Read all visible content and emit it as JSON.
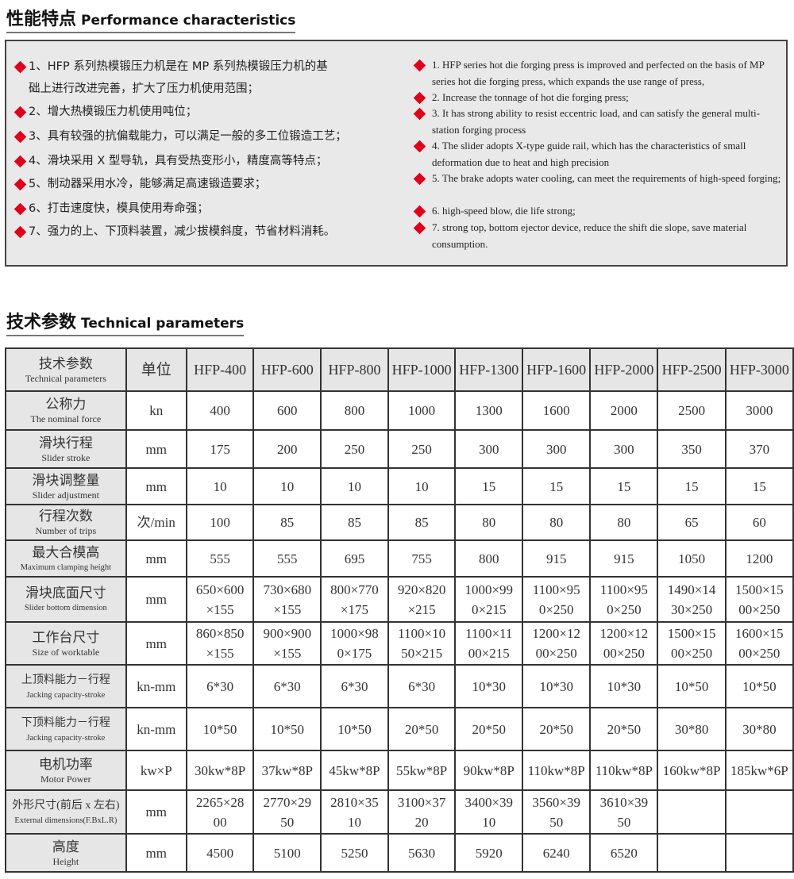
{
  "performance": {
    "title_cn": "性能特点",
    "title_en": "Performance characteristics",
    "items_cn": [
      "1、HFP 系列热模锻压力机是在 MP 系列热模锻压力机的基",
      "础上进行改进完善，扩大了压力机使用范围；",
      "2、增大热模锻压力机使用吨位；",
      "3、具有较强的抗偏载能力，可以满足一般的多工位锻造工艺；",
      "4、滑块采用 X 型导轨，具有受热变形小，精度高等特点；",
      "5、制动器采用水冷，能够满足高速锻造要求；",
      "6、打击速度快，模具使用寿命强；",
      "7、强力的上、下顶料装置，减少拔模斜度，节省材料消耗。"
    ],
    "items_en": [
      "1. HFP series hot die forging press is improved and perfected on the basis of MP series hot die forging press, which expands the use range of press,",
      "2. Increase the tonnage of hot die forging press;",
      "3. It has strong ability to resist eccentric load, and can satisfy the general multi-station forging process",
      "4. The slider adopts X-type guide rail, which has the characteristics of small deformation due to heat and high precision",
      "5. The brake adopts water cooling, can meet the requirements of high-speed forging;",
      "6.  high-speed blow, die life strong;",
      "7.  strong top, bottom ejector device, reduce the shift die slope, save material consumption."
    ],
    "bullet_color": "#e0001b"
  },
  "technical": {
    "title_cn": "技术参数",
    "title_en": "Technical parameters",
    "header": {
      "param_cn": "技术参数",
      "param_en": "Technical parameters",
      "unit": "单位",
      "models": [
        "HFP-400",
        "HFP-600",
        "HFP-800",
        "HFP-1000",
        "HFP-1300",
        "HFP-1600",
        "HFP-2000",
        "HFP-2500",
        "HFP-3000"
      ]
    },
    "rows": [
      {
        "cn": "公称力",
        "en": "The nominal force",
        "unit": "kn",
        "values": [
          [
            "400"
          ],
          [
            "600"
          ],
          [
            "800"
          ],
          [
            "1000"
          ],
          [
            "1300"
          ],
          [
            "1600"
          ],
          [
            "2000"
          ],
          [
            "2500"
          ],
          [
            "3000"
          ]
        ]
      },
      {
        "cn": "滑块行程",
        "en": "Slider stroke",
        "unit": "mm",
        "values": [
          [
            "175"
          ],
          [
            "200"
          ],
          [
            "250"
          ],
          [
            "250"
          ],
          [
            "300"
          ],
          [
            "300"
          ],
          [
            "300"
          ],
          [
            "350"
          ],
          [
            "370"
          ]
        ]
      },
      {
        "cn": "滑块调整量",
        "en": "Slider adjustment",
        "unit": "mm",
        "values": [
          [
            "10"
          ],
          [
            "10"
          ],
          [
            "10"
          ],
          [
            "10"
          ],
          [
            "15"
          ],
          [
            "15"
          ],
          [
            "15"
          ],
          [
            "15"
          ],
          [
            "15"
          ]
        ]
      },
      {
        "cn": "行程次数",
        "en": "Number of trips",
        "unit": "次/min",
        "values": [
          [
            "100"
          ],
          [
            "85"
          ],
          [
            "85"
          ],
          [
            "85"
          ],
          [
            "80"
          ],
          [
            "80"
          ],
          [
            "80"
          ],
          [
            "65"
          ],
          [
            "60"
          ]
        ]
      },
      {
        "cn": "最大合模高",
        "en": "Maximum clamping height",
        "unit": "mm",
        "values": [
          [
            "555"
          ],
          [
            "555"
          ],
          [
            "695"
          ],
          [
            "755"
          ],
          [
            "800"
          ],
          [
            "915"
          ],
          [
            "915"
          ],
          [
            "1050"
          ],
          [
            "1200"
          ]
        ]
      },
      {
        "cn": "滑块底面尺寸",
        "en": "Slider bottom dimension",
        "unit": "mm",
        "values": [
          [
            "650×600",
            "×155"
          ],
          [
            "730×680",
            "×155"
          ],
          [
            "800×770",
            "×175"
          ],
          [
            "920×820",
            "×215"
          ],
          [
            "1000×99",
            "0×215"
          ],
          [
            "1100×95",
            "0×250"
          ],
          [
            "1100×95",
            "0×250"
          ],
          [
            "1490×14",
            "30×250"
          ],
          [
            "1500×15",
            "00×250"
          ]
        ]
      },
      {
        "cn": "工作台尺寸",
        "en": "Size of worktable",
        "unit": "mm",
        "values": [
          [
            "860×850",
            "×155"
          ],
          [
            "900×900",
            "×155"
          ],
          [
            "1000×98",
            "0×175"
          ],
          [
            "1100×10",
            "50×215"
          ],
          [
            "1100×11",
            "00×215"
          ],
          [
            "1200×12",
            "00×250"
          ],
          [
            "1200×12",
            "00×250"
          ],
          [
            "1500×15",
            "00×250"
          ],
          [
            "1600×15",
            "00×250"
          ]
        ]
      },
      {
        "cn": "上顶料能力－行程",
        "en": "Jacking capacity-stroke",
        "unit": "kn-mm",
        "values": [
          [
            "6*30"
          ],
          [
            "6*30"
          ],
          [
            "6*30"
          ],
          [
            "6*30"
          ],
          [
            "10*30"
          ],
          [
            "10*30"
          ],
          [
            "10*30"
          ],
          [
            "10*50"
          ],
          [
            "10*50"
          ]
        ]
      },
      {
        "cn": "下顶料能力－行程",
        "en": "Jacking capacity-stroke",
        "unit": "kn-mm",
        "values": [
          [
            "10*50"
          ],
          [
            "10*50"
          ],
          [
            "10*50"
          ],
          [
            "20*50"
          ],
          [
            "20*50"
          ],
          [
            "20*50"
          ],
          [
            "20*50"
          ],
          [
            "30*80"
          ],
          [
            "30*80"
          ]
        ]
      },
      {
        "cn": "电机功率",
        "en": "Motor Power",
        "unit": "kw×P",
        "values": [
          [
            "30kw*8P"
          ],
          [
            "37kw*8P"
          ],
          [
            "45kw*8P"
          ],
          [
            "55kw*8P"
          ],
          [
            "90kw*8P"
          ],
          [
            "110kw*8P"
          ],
          [
            "110kw*8P"
          ],
          [
            "160kw*8P"
          ],
          [
            "185kw*6P"
          ]
        ]
      },
      {
        "cn": "外形尺寸(前后 x 左右)",
        "en": "External dimensions(F.BxL.R)",
        "unit": "mm",
        "values": [
          [
            "2265×28",
            "00"
          ],
          [
            "2770×29",
            "50"
          ],
          [
            "2810×35",
            "10"
          ],
          [
            "3100×37",
            "20"
          ],
          [
            "3400×39",
            "10"
          ],
          [
            "3560×39",
            "50"
          ],
          [
            "3610×39",
            "50"
          ],
          [
            ""
          ],
          [
            ""
          ]
        ]
      },
      {
        "cn": "高度",
        "en": "Height",
        "unit": "mm",
        "values": [
          [
            "4500"
          ],
          [
            "5100"
          ],
          [
            "5250"
          ],
          [
            "5630"
          ],
          [
            "5920"
          ],
          [
            "6240"
          ],
          [
            "6520"
          ],
          [
            ""
          ],
          [
            ""
          ]
        ]
      }
    ]
  }
}
